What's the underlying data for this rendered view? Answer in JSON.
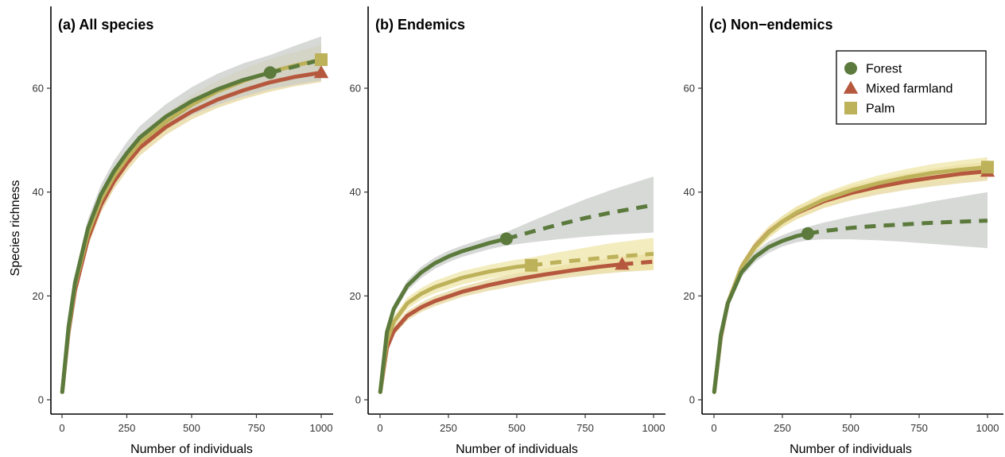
{
  "figure": {
    "ylabel": "Species richness",
    "xlabel": "Number of individuals"
  },
  "colors": {
    "Forest": "#5b7a3c",
    "Mixed farmland": "#b5583e",
    "Palm": "#bdb15a",
    "ci_Forest": "#c9ccca",
    "ci_Mixed farmland": "#e6d69c",
    "ci_Palm": "#efe6a8"
  },
  "legend": {
    "panel": 2,
    "items": [
      {
        "label": "Forest",
        "marker": "circle"
      },
      {
        "label": "Mixed farmland",
        "marker": "triangle"
      },
      {
        "label": "Palm",
        "marker": "square"
      }
    ]
  },
  "chart_data": [
    {
      "type": "line",
      "title": "(a) All species",
      "xlabel": "Number of individuals",
      "ylabel": "Species richness",
      "xlim": [
        0,
        1000
      ],
      "ylim": [
        0,
        70
      ],
      "xticks": [
        0,
        250,
        500,
        750,
        1000
      ],
      "yticks": [
        0,
        20,
        40,
        60
      ],
      "series": [
        {
          "name": "Mixed farmland",
          "marker": "triangle",
          "observed": {
            "x": 1000,
            "y": 63
          },
          "x": [
            1,
            25,
            50,
            100,
            150,
            200,
            250,
            300,
            400,
            500,
            600,
            700,
            800,
            900,
            1000
          ],
          "y": [
            1.5,
            13,
            21,
            31,
            37.5,
            42,
            45.5,
            48.5,
            52.5,
            55.5,
            57.8,
            59.6,
            61.1,
            62.2,
            63
          ],
          "ci_low": [
            1.5,
            12,
            19.8,
            29.5,
            36,
            40.5,
            44,
            47,
            51,
            54,
            56.2,
            57.9,
            59.3,
            60.4,
            61.2
          ],
          "ci_high": [
            1.5,
            14,
            22.2,
            32.5,
            39,
            43.5,
            47,
            50,
            54,
            57,
            59.4,
            61.3,
            62.9,
            64,
            64.8
          ]
        },
        {
          "name": "Palm",
          "marker": "square",
          "observed": {
            "x": 1000,
            "y": 65.5
          },
          "x": [
            1,
            25,
            50,
            100,
            150,
            200,
            250,
            300,
            400,
            500,
            600,
            700,
            800,
            900,
            1000
          ],
          "y": [
            1.5,
            13.5,
            22,
            32,
            38.5,
            43,
            46.5,
            49.5,
            53.5,
            56.8,
            59.4,
            61.4,
            63.1,
            64.4,
            65.5
          ],
          "ci_low": [
            1.5,
            12.5,
            20.7,
            30.4,
            36.9,
            41.4,
            44.9,
            47.9,
            51.8,
            54.9,
            57.3,
            59.1,
            60.6,
            61.8,
            62.7
          ],
          "ci_high": [
            1.5,
            14.5,
            23.3,
            33.6,
            40.1,
            44.6,
            48.1,
            51.1,
            55.2,
            58.7,
            61.5,
            63.7,
            65.6,
            67,
            68.3
          ]
        },
        {
          "name": "Forest",
          "marker": "circle",
          "observed": {
            "x": 803,
            "y": 63
          },
          "x": [
            1,
            25,
            50,
            100,
            150,
            200,
            250,
            300,
            400,
            500,
            600,
            700,
            803,
            900,
            1000
          ],
          "y": [
            1.5,
            14,
            22.5,
            33,
            39.5,
            44,
            47.5,
            50.5,
            54.5,
            57.5,
            59.8,
            61.6,
            63,
            64.2,
            65.5
          ],
          "ci_low": [
            1.5,
            13,
            21,
            31.2,
            37.6,
            42,
            45.4,
            48.3,
            52.1,
            54.8,
            56.8,
            58.4,
            59.8,
            60.7,
            61.5
          ],
          "ci_high": [
            1.5,
            15,
            24,
            34.8,
            41.4,
            46,
            49.6,
            52.7,
            56.9,
            60.2,
            62.8,
            64.8,
            66.4,
            68.2,
            70
          ]
        }
      ]
    },
    {
      "type": "line",
      "title": "(b) Endemics",
      "xlabel": "Number of individuals",
      "ylabel": "Species richness",
      "xlim": [
        0,
        1000
      ],
      "ylim": [
        0,
        70
      ],
      "xticks": [
        0,
        250,
        500,
        750,
        1000
      ],
      "yticks": [
        0,
        20,
        40,
        60
      ],
      "series": [
        {
          "name": "Mixed farmland",
          "marker": "triangle",
          "observed": {
            "x": 885,
            "y": 26.1
          },
          "x": [
            1,
            25,
            50,
            100,
            150,
            200,
            300,
            400,
            500,
            600,
            700,
            800,
            885,
            1000
          ],
          "y": [
            1.5,
            10,
            13.2,
            16.2,
            17.8,
            19,
            20.8,
            22.1,
            23.2,
            24.1,
            24.9,
            25.6,
            26.1,
            26.6
          ],
          "ci_low": [
            1.5,
            9.3,
            12.4,
            15.3,
            16.9,
            18,
            19.8,
            21,
            22,
            22.9,
            23.6,
            24.2,
            24.6,
            25
          ],
          "ci_high": [
            1.5,
            10.7,
            14,
            17.1,
            18.7,
            20,
            21.8,
            23.2,
            24.4,
            25.3,
            26.2,
            27,
            27.6,
            28.2
          ]
        },
        {
          "name": "Palm",
          "marker": "square",
          "observed": {
            "x": 553,
            "y": 25.9
          },
          "x": [
            1,
            25,
            50,
            100,
            150,
            200,
            300,
            400,
            500,
            553,
            650,
            750,
            850,
            1000
          ],
          "y": [
            1.5,
            11.2,
            15,
            18.6,
            20.4,
            21.7,
            23.5,
            24.7,
            25.6,
            25.9,
            26.5,
            27,
            27.5,
            28.1
          ],
          "ci_low": [
            1.5,
            10.4,
            14,
            17.5,
            19.3,
            20.5,
            22.2,
            23.4,
            24.2,
            24.4,
            24.6,
            24.8,
            24.9,
            25
          ],
          "ci_high": [
            1.5,
            12,
            16,
            19.7,
            21.5,
            22.9,
            24.8,
            26,
            27,
            27.4,
            28.4,
            29.3,
            30.2,
            31.2
          ]
        },
        {
          "name": "Forest",
          "marker": "circle",
          "observed": {
            "x": 462,
            "y": 31
          },
          "x": [
            1,
            25,
            50,
            100,
            150,
            200,
            250,
            300,
            400,
            462,
            550,
            650,
            750,
            850,
            1000
          ],
          "y": [
            1.5,
            13,
            17.5,
            22,
            24.5,
            26.3,
            27.6,
            28.6,
            30.2,
            31,
            32.3,
            33.7,
            35,
            36.1,
            37.5
          ],
          "ci_low": [
            1.5,
            12.2,
            16.6,
            21,
            23.4,
            25.2,
            26.5,
            27.5,
            29,
            29.7,
            30.3,
            30.9,
            31.4,
            31.8,
            32.2
          ],
          "ci_high": [
            1.5,
            13.8,
            18.4,
            23,
            25.6,
            27.4,
            28.7,
            29.7,
            31.4,
            32.3,
            34.3,
            36.5,
            38.6,
            40.5,
            43
          ]
        }
      ]
    },
    {
      "type": "line",
      "title": "(c) Non−endemics",
      "xlabel": "Number of individuals",
      "ylabel": "Species richness",
      "xlim": [
        0,
        1000
      ],
      "ylim": [
        0,
        70
      ],
      "xticks": [
        0,
        250,
        500,
        750,
        1000
      ],
      "yticks": [
        0,
        20,
        40,
        60
      ],
      "series": [
        {
          "name": "Mixed farmland",
          "marker": "triangle",
          "observed": {
            "x": 1000,
            "y": 44
          },
          "x": [
            1,
            25,
            50,
            100,
            150,
            200,
            250,
            300,
            400,
            500,
            600,
            700,
            800,
            900,
            1000
          ],
          "y": [
            1.5,
            12,
            18.5,
            25.5,
            29.5,
            32.3,
            34.3,
            35.9,
            38.2,
            39.8,
            41,
            42,
            42.8,
            43.5,
            44
          ],
          "ci_low": [
            1.5,
            11.4,
            17.7,
            24.6,
            28.5,
            31.2,
            33.2,
            34.7,
            36.9,
            38.4,
            39.5,
            40.4,
            41.1,
            41.7,
            42.2
          ],
          "ci_high": [
            1.5,
            12.6,
            19.3,
            26.4,
            30.5,
            33.4,
            35.4,
            37.1,
            39.5,
            41.2,
            42.5,
            43.6,
            44.5,
            45.3,
            45.8
          ]
        },
        {
          "name": "Palm",
          "marker": "square",
          "observed": {
            "x": 1000,
            "y": 44.8
          },
          "x": [
            1,
            25,
            50,
            100,
            150,
            200,
            250,
            300,
            400,
            500,
            600,
            700,
            800,
            900,
            1000
          ],
          "y": [
            1.5,
            12.2,
            18.6,
            25.5,
            29.4,
            32.2,
            34.3,
            36,
            38.5,
            40.3,
            41.7,
            42.8,
            43.7,
            44.3,
            44.8
          ],
          "ci_low": [
            1.5,
            11.6,
            17.8,
            24.6,
            28.4,
            31.1,
            33.2,
            34.8,
            37.2,
            38.9,
            40.2,
            41.2,
            42,
            42.5,
            42.9
          ],
          "ci_high": [
            1.5,
            12.8,
            19.4,
            26.4,
            30.4,
            33.3,
            35.4,
            37.2,
            39.8,
            41.7,
            43.2,
            44.4,
            45.4,
            46.1,
            46.7
          ]
        },
        {
          "name": "Forest",
          "marker": "circle",
          "observed": {
            "x": 343,
            "y": 32
          },
          "x": [
            1,
            25,
            50,
            100,
            150,
            200,
            250,
            300,
            343,
            400,
            500,
            600,
            700,
            800,
            900,
            1000
          ],
          "y": [
            1.5,
            12.5,
            18.5,
            24.5,
            27.5,
            29.4,
            30.6,
            31.5,
            32,
            32.5,
            33.1,
            33.5,
            33.8,
            34.1,
            34.3,
            34.5
          ],
          "ci_low": [
            1.5,
            11.9,
            17.7,
            23.6,
            26.5,
            28.3,
            29.5,
            30.3,
            30.7,
            30.9,
            30.9,
            30.7,
            30.4,
            30,
            29.6,
            29.2
          ],
          "ci_high": [
            1.5,
            13.1,
            19.3,
            25.4,
            28.5,
            30.5,
            31.7,
            32.7,
            33.3,
            34.1,
            35.3,
            36.3,
            37.2,
            38.2,
            39.1,
            40
          ]
        }
      ]
    }
  ]
}
